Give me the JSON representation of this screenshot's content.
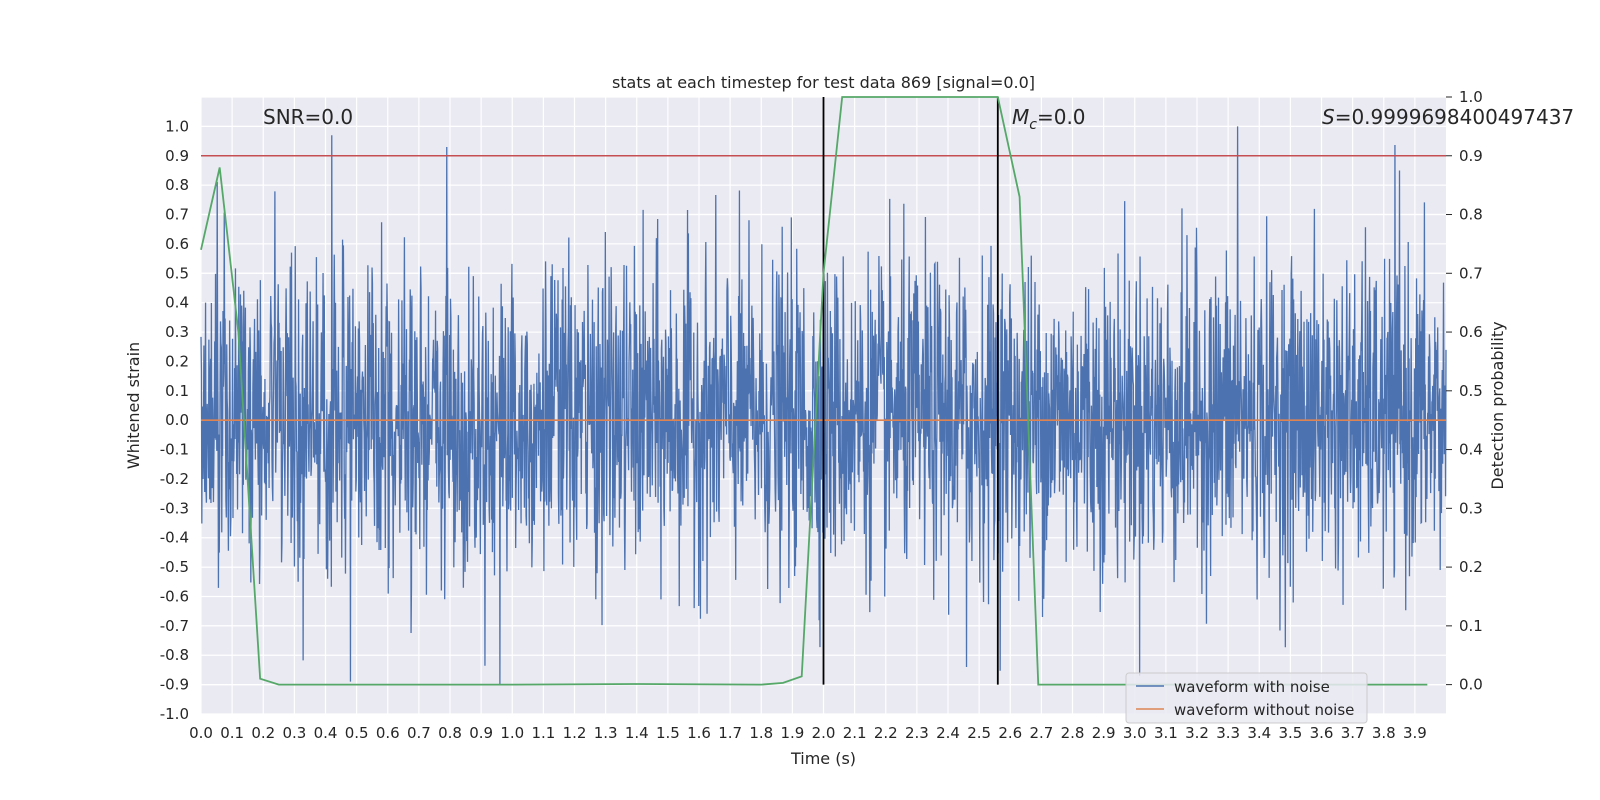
{
  "chart_data": {
    "type": "line",
    "title": "stats at each timestep for test data 869 [signal=0.0]",
    "xlabel": "Time (s)",
    "ylabel": "Whitened strain",
    "y2label": "Detection probability",
    "xlim": [
      0.0,
      4.0
    ],
    "ylim": [
      -1.0,
      1.1
    ],
    "y2lim": [
      -0.05,
      1.0
    ],
    "x_ticks": [
      "0.0",
      "0.1",
      "0.2",
      "0.3",
      "0.4",
      "0.5",
      "0.6",
      "0.7",
      "0.8",
      "0.9",
      "1.0",
      "1.1",
      "1.2",
      "1.3",
      "1.4",
      "1.5",
      "1.6",
      "1.7",
      "1.8",
      "1.9",
      "2.0",
      "2.1",
      "2.2",
      "2.3",
      "2.4",
      "2.5",
      "2.6",
      "2.7",
      "2.8",
      "2.9",
      "3.0",
      "3.1",
      "3.2",
      "3.3",
      "3.4",
      "3.5",
      "3.6",
      "3.7",
      "3.8",
      "3.9"
    ],
    "y_ticks": [
      "-1.0",
      "-0.9",
      "-0.8",
      "-0.7",
      "-0.6",
      "-0.5",
      "-0.4",
      "-0.3",
      "-0.2",
      "-0.1",
      "0.0",
      "0.1",
      "0.2",
      "0.3",
      "0.4",
      "0.5",
      "0.6",
      "0.7",
      "0.8",
      "0.9",
      "1.0"
    ],
    "y2_ticks": [
      "0.0",
      "0.1",
      "0.2",
      "0.3",
      "0.4",
      "0.5",
      "0.6",
      "0.7",
      "0.8",
      "0.9",
      "1.0"
    ],
    "grid": true,
    "legend_position": "bottom-right",
    "annotations": {
      "snr": "SNR=0.0",
      "mc_symbol": "M",
      "mc_sub": "c",
      "mc_value": "=0.0",
      "s_symbol": "S",
      "s_value": "=0.9999698400497437"
    },
    "series": [
      {
        "name": "waveform with noise",
        "color": "#4c72b0",
        "description": "dense noise trace, amplitude roughly within [-0.9, 1.0]",
        "extremes": [
          {
            "x": 0.42,
            "y": 0.97
          },
          {
            "x": 0.79,
            "y": 0.93
          },
          {
            "x": 3.33,
            "y": 1.0
          },
          {
            "x": 3.85,
            "y": 0.85
          },
          {
            "x": 0.96,
            "y": -0.9
          },
          {
            "x": 0.48,
            "y": -0.89
          },
          {
            "x": 2.46,
            "y": -0.84
          }
        ]
      },
      {
        "name": "waveform without noise",
        "color": "#dd8452",
        "x": [
          0.0,
          4.0
        ],
        "y": [
          0.0,
          0.0
        ]
      },
      {
        "name": "detection probability",
        "color": "#55a868",
        "axis": "right",
        "x": [
          0.0,
          0.06,
          0.12,
          0.19,
          0.25,
          0.5,
          1.0,
          1.4,
          1.8,
          1.87,
          1.93,
          2.0,
          2.06,
          2.12,
          2.3,
          2.56,
          2.63,
          2.69,
          2.8,
          3.0,
          3.5,
          3.94
        ],
        "y": [
          0.74,
          0.88,
          0.6,
          0.01,
          0.0,
          0.0,
          0.0,
          0.001,
          0.0,
          0.003,
          0.014,
          0.7,
          1.0,
          1.0,
          1.0,
          1.0,
          0.83,
          0.0,
          0.0,
          0.0,
          0.0,
          0.0
        ]
      }
    ],
    "threshold_line": {
      "y2": 0.9,
      "color": "#c44e52"
    },
    "vertical_lines": [
      {
        "x": 2.0,
        "color": "#000000"
      },
      {
        "x": 2.56,
        "color": "#000000"
      }
    ]
  }
}
